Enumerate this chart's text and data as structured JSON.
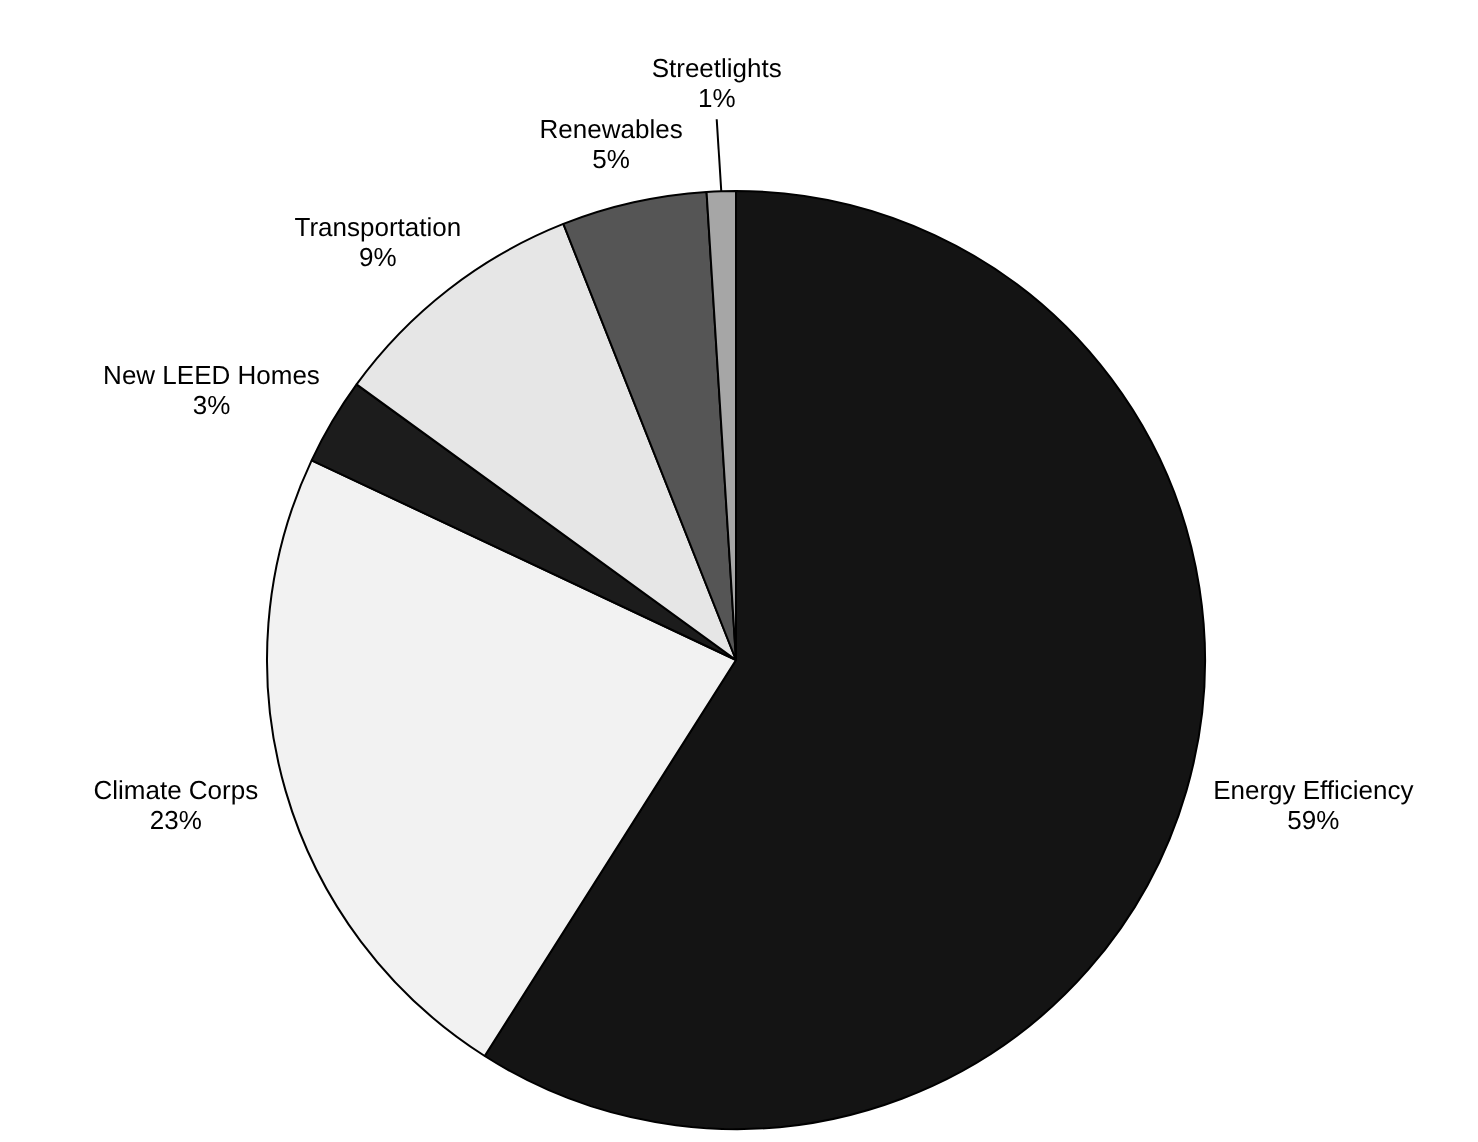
{
  "chart_data": {
    "type": "pie",
    "categories": [
      "Energy Efficiency",
      "Climate Corps",
      "New LEED Homes",
      "Transportation",
      "Renewables",
      "Streetlights"
    ],
    "values": [
      59,
      23,
      3,
      9,
      5,
      1
    ],
    "value_labels": [
      "59%",
      "23%",
      "3%",
      "9%",
      "5%",
      "1%"
    ],
    "colors": [
      "#141414",
      "#f2f2f2",
      "#1c1c1c",
      "#e6e6e6",
      "#555555",
      "#a6a6a6"
    ],
    "legend": false
  }
}
